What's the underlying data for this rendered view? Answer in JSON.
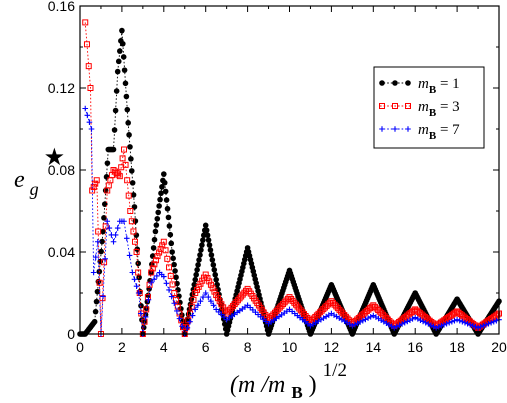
{
  "chart_data": {
    "type": "scatter",
    "title": "",
    "xlabel": {
      "base": "(m /m",
      "sub": "B",
      "close": ")",
      "exp": "1/2"
    },
    "ylabel": {
      "base": "e",
      "sub": "g",
      "sup": "★"
    },
    "xlim": [
      0,
      20
    ],
    "ylim": [
      0,
      0.16
    ],
    "xticks": [
      0,
      2,
      4,
      6,
      8,
      10,
      12,
      14,
      16,
      18,
      20
    ],
    "xtick_labels": [
      "0",
      "2",
      "4",
      "6",
      "8",
      "10",
      "12",
      "14",
      "16",
      "18",
      "20"
    ],
    "yticks": [
      0,
      0.04,
      0.08,
      0.12,
      0.16
    ],
    "ytick_labels": [
      "0",
      "0.04",
      "0.08",
      "0.12",
      "0.16"
    ],
    "grid": false,
    "legend_position": "top-right",
    "series": [
      {
        "name": "m_B = 1",
        "legend": {
          "var": "m",
          "sub": "B",
          "rest": " = 1"
        },
        "color": "#000000",
        "marker": "filled-circle",
        "m_B": 1,
        "peaks": [
          [
            0.0,
            0.0
          ],
          [
            0.25,
            0.0
          ],
          [
            0.7,
            0.006
          ],
          [
            1.1,
            0.05
          ],
          [
            1.35,
            0.09
          ],
          [
            1.6,
            0.09
          ],
          [
            1.8,
            0.128
          ],
          [
            2.0,
            0.148
          ],
          [
            2.3,
            0.103
          ],
          [
            2.6,
            0.062
          ],
          [
            3.0,
            0.0
          ],
          [
            3.3,
            0.022
          ],
          [
            3.6,
            0.05
          ],
          [
            4.0,
            0.078
          ],
          [
            4.4,
            0.04
          ],
          [
            5.0,
            0.0
          ],
          [
            6.0,
            0.053
          ],
          [
            7.0,
            0.0
          ],
          [
            8.0,
            0.042
          ],
          [
            9.0,
            0.0
          ],
          [
            10.0,
            0.031
          ],
          [
            11.0,
            0.0
          ],
          [
            12.0,
            0.024
          ],
          [
            13.0,
            0.0
          ],
          [
            14.0,
            0.024
          ],
          [
            15.0,
            0.0
          ],
          [
            16.0,
            0.02
          ],
          [
            17.0,
            0.0
          ],
          [
            18.0,
            0.017
          ],
          [
            19.0,
            0.0
          ],
          [
            20.0,
            0.016
          ]
        ],
        "floor": 0.0
      },
      {
        "name": "m_B = 3",
        "legend": {
          "var": "m",
          "sub": "B",
          "rest": " = 3"
        },
        "color": "#ff0000",
        "marker": "open-square",
        "m_B": 3,
        "peaks": [
          [
            0.25,
            0.152
          ],
          [
            0.5,
            0.12
          ],
          [
            0.58,
            0.07
          ],
          [
            0.8,
            0.075
          ],
          [
            1.0,
            0.0
          ],
          [
            1.3,
            0.07
          ],
          [
            1.6,
            0.08
          ],
          [
            1.9,
            0.077
          ],
          [
            2.1,
            0.09
          ],
          [
            2.4,
            0.06
          ],
          [
            2.7,
            0.04
          ],
          [
            3.0,
            0.0
          ],
          [
            3.4,
            0.03
          ],
          [
            3.7,
            0.038
          ],
          [
            4.0,
            0.045
          ],
          [
            4.5,
            0.02
          ],
          [
            5.0,
            0.0
          ],
          [
            5.5,
            0.02
          ],
          [
            6.0,
            0.029
          ],
          [
            6.5,
            0.019
          ],
          [
            7.0,
            0.01
          ],
          [
            8.0,
            0.022
          ],
          [
            9.0,
            0.007
          ],
          [
            10.0,
            0.018
          ],
          [
            11.0,
            0.006
          ],
          [
            12.0,
            0.016
          ],
          [
            13.0,
            0.005
          ],
          [
            14.0,
            0.014
          ],
          [
            15.0,
            0.004
          ],
          [
            16.0,
            0.012
          ],
          [
            17.0,
            0.004
          ],
          [
            18.0,
            0.011
          ],
          [
            19.0,
            0.003
          ],
          [
            20.0,
            0.01
          ]
        ],
        "floor": 0.005
      },
      {
        "name": "m_B = 7",
        "legend": {
          "var": "m",
          "sub": "B",
          "rest": " = 7"
        },
        "color": "#0000ff",
        "marker": "plus",
        "m_B": 7,
        "peaks": [
          [
            0.25,
            0.11
          ],
          [
            0.55,
            0.1
          ],
          [
            0.65,
            0.03
          ],
          [
            0.85,
            0.045
          ],
          [
            1.0,
            0.0
          ],
          [
            1.3,
            0.055
          ],
          [
            1.6,
            0.045
          ],
          [
            1.9,
            0.055
          ],
          [
            2.1,
            0.055
          ],
          [
            2.5,
            0.03
          ],
          [
            2.8,
            0.02
          ],
          [
            3.0,
            0.0
          ],
          [
            3.4,
            0.025
          ],
          [
            3.8,
            0.03
          ],
          [
            4.0,
            0.028
          ],
          [
            4.5,
            0.015
          ],
          [
            5.0,
            0.0
          ],
          [
            5.5,
            0.012
          ],
          [
            6.0,
            0.02
          ],
          [
            6.5,
            0.012
          ],
          [
            7.0,
            0.007
          ],
          [
            8.0,
            0.014
          ],
          [
            9.0,
            0.005
          ],
          [
            10.0,
            0.012
          ],
          [
            11.0,
            0.004
          ],
          [
            12.0,
            0.01
          ],
          [
            13.0,
            0.004
          ],
          [
            14.0,
            0.009
          ],
          [
            15.0,
            0.003
          ],
          [
            16.0,
            0.008
          ],
          [
            17.0,
            0.003
          ],
          [
            18.0,
            0.007
          ],
          [
            19.0,
            0.003
          ],
          [
            20.0,
            0.007
          ]
        ],
        "floor": 0.004
      }
    ]
  }
}
